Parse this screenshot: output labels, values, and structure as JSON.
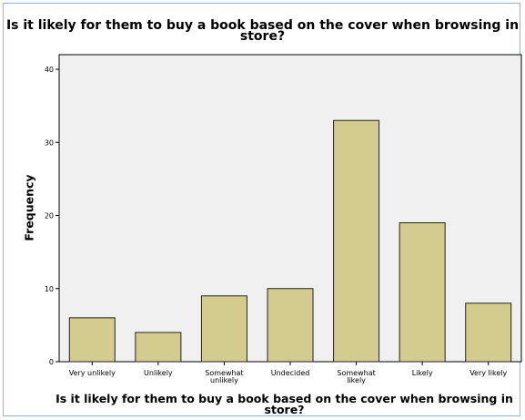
{
  "chart_data": {
    "type": "bar",
    "title": "Is it likely for them to buy a book based on the cover when browsing in store?",
    "xlabel": "Is it likely for them to buy a book based on the cover when browsing in store?",
    "ylabel": "Frequency",
    "categories": [
      "Very unlikely",
      "Unlikely",
      "Somewhat unlikely",
      "Undecided",
      "Somewhat likely",
      "Likely",
      "Very likely"
    ],
    "values": [
      6,
      4,
      9,
      10,
      33,
      19,
      8
    ],
    "yticks": [
      0,
      10,
      20,
      30,
      40
    ],
    "ylim": [
      0,
      42
    ],
    "grid": false,
    "colors": {
      "bar": "#d4cc8e",
      "bar_stroke": "#222222",
      "plot_bg": "#f0f0f0",
      "frame": "#8fb3d6"
    }
  }
}
